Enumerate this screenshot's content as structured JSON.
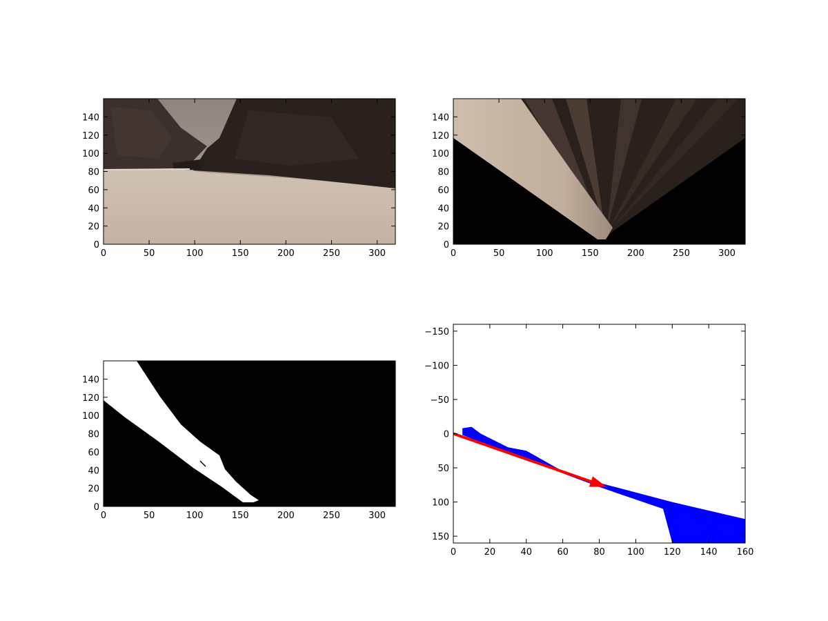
{
  "chart_data": [
    {
      "type": "image",
      "panel": "top-left",
      "content": "rover camera view: canyon with dark rock walls on both sides, gray sky, light sandy ground",
      "xlim": [
        0,
        320
      ],
      "ylim": [
        160,
        0
      ],
      "xticks": [
        0,
        50,
        100,
        150,
        200,
        250,
        300
      ],
      "yticks": [
        0,
        20,
        40,
        60,
        80,
        100,
        120,
        140
      ]
    },
    {
      "type": "image",
      "panel": "top-right",
      "content": "perspective-warped top-down view: light sand wedge on the left, dark streaked rock on the right, black areas outside field of view",
      "xlim": [
        0,
        320
      ],
      "ylim": [
        160,
        0
      ],
      "xticks": [
        0,
        50,
        100,
        150,
        200,
        250,
        300
      ],
      "yticks": [
        0,
        20,
        40,
        60,
        80,
        100,
        120,
        140
      ]
    },
    {
      "type": "image",
      "panel": "bottom-left",
      "content": "binary navigable-terrain mask: white diagonal strip on black background",
      "xlim": [
        0,
        320
      ],
      "ylim": [
        160,
        0
      ],
      "xticks": [
        0,
        50,
        100,
        150,
        200,
        250,
        300
      ],
      "yticks": [
        0,
        20,
        40,
        60,
        80,
        100,
        120,
        140
      ]
    },
    {
      "type": "scatter",
      "panel": "bottom-right",
      "content": "rover-centric navigable pixel cloud in blue with red mean-direction arrow",
      "xlim": [
        0,
        160
      ],
      "ylim": [
        -160,
        160
      ],
      "xticks": [
        0,
        20,
        40,
        60,
        80,
        100,
        120,
        140,
        160
      ],
      "yticks": [
        150,
        100,
        50,
        0,
        -50,
        -100,
        -150
      ],
      "ytick_labels": [
        "150",
        "100",
        "50",
        "0",
        "−50",
        "−100",
        "−150"
      ],
      "point_color": "#0000ff",
      "region_upper_edge": [
        [
          5,
          2
        ],
        [
          40,
          38
        ],
        [
          80,
          78
        ],
        [
          115,
          110
        ],
        [
          120,
          160
        ]
      ],
      "region_lower_edge": [
        [
          160,
          160
        ],
        [
          160,
          125
        ],
        [
          120,
          100
        ],
        [
          80,
          72
        ],
        [
          60,
          55
        ],
        [
          40,
          25
        ],
        [
          30,
          20
        ],
        [
          15,
          0
        ],
        [
          10,
          -10
        ],
        [
          5,
          -8
        ]
      ],
      "arrow": {
        "start": [
          0,
          0
        ],
        "end": [
          84,
          78
        ],
        "color": "#ff0000"
      }
    }
  ]
}
